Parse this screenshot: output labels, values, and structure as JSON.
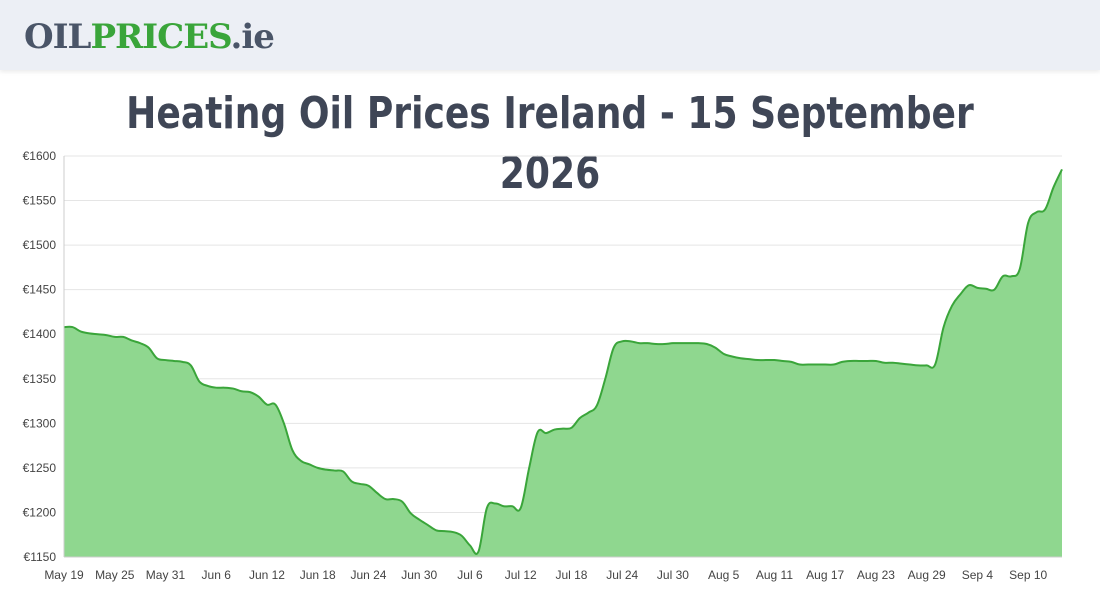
{
  "header": {
    "logo_part1": "OIL",
    "logo_part2": "PRICES",
    "logo_part3": ".ie"
  },
  "page_title": "Heating Oil Prices Ireland - 15 September 2026",
  "colors": {
    "line": "#3aa53a",
    "fill": "#8fd78f",
    "grid": "#e5e5e5",
    "title": "#3f4656"
  },
  "chart_data": {
    "type": "area",
    "title": "",
    "xlabel": "",
    "ylabel": "",
    "ylim": [
      1150,
      1600
    ],
    "xlim": [
      0,
      118
    ],
    "grid": true,
    "legend": "none",
    "y_ticks": [
      "€1600",
      "€1550",
      "€1500",
      "€1450",
      "€1400",
      "€1350",
      "€1300",
      "€1250",
      "€1200",
      "€1150"
    ],
    "y_tick_values": [
      1600,
      1550,
      1500,
      1450,
      1400,
      1350,
      1300,
      1250,
      1200,
      1150
    ],
    "x_ticks": [
      "May 19",
      "May 25",
      "May 31",
      "Jun 6",
      "Jun 12",
      "Jun 18",
      "Jun 24",
      "Jun 30",
      "Jul 6",
      "Jul 12",
      "Jul 18",
      "Jul 24",
      "Jul 30",
      "Aug 5",
      "Aug 11",
      "Aug 17",
      "Aug 23",
      "Aug 29",
      "Sep 4",
      "Sep 10"
    ],
    "x_tick_values": [
      0,
      6,
      12,
      18,
      24,
      30,
      36,
      42,
      48,
      54,
      60,
      66,
      72,
      78,
      84,
      90,
      96,
      102,
      108,
      114
    ],
    "series": [
      {
        "x": [
          0,
          1,
          2,
          3,
          4,
          5,
          6,
          7,
          8,
          9,
          10,
          11,
          12,
          13,
          14,
          15,
          16,
          17,
          18,
          19,
          20,
          21,
          22,
          23,
          24,
          25,
          26,
          27,
          28,
          29,
          30,
          31,
          32,
          33,
          34,
          35,
          36,
          37,
          38,
          39,
          40,
          41,
          42,
          43,
          44,
          45,
          46,
          47,
          48,
          49,
          50,
          51,
          52,
          53,
          54,
          55,
          56,
          57,
          58,
          59,
          60,
          61,
          62,
          63,
          64,
          65,
          66,
          67,
          68,
          69,
          70,
          71,
          72,
          73,
          74,
          75,
          76,
          77,
          78,
          79,
          80,
          81,
          82,
          83,
          84,
          85,
          86,
          87,
          88,
          89,
          90,
          91,
          92,
          93,
          94,
          95,
          96,
          97,
          98,
          99,
          100,
          101,
          102,
          103,
          104,
          105,
          106,
          107,
          108,
          109,
          110,
          111,
          112,
          113,
          114,
          115,
          116,
          117,
          118
        ],
        "values": [
          1408,
          1408,
          1403,
          1401,
          1400,
          1399,
          1397,
          1397,
          1393,
          1390,
          1385,
          1373,
          1371,
          1370,
          1369,
          1365,
          1347,
          1342,
          1340,
          1340,
          1339,
          1336,
          1335,
          1330,
          1321,
          1321,
          1300,
          1270,
          1258,
          1254,
          1250,
          1248,
          1247,
          1246,
          1235,
          1232,
          1230,
          1222,
          1215,
          1215,
          1212,
          1199,
          1192,
          1186,
          1180,
          1179,
          1178,
          1174,
          1163,
          1156,
          1205,
          1210,
          1207,
          1207,
          1205,
          1250,
          1290,
          1289,
          1293,
          1294,
          1295,
          1306,
          1312,
          1320,
          1350,
          1385,
          1392,
          1392,
          1390,
          1390,
          1389,
          1389,
          1390,
          1390,
          1390,
          1390,
          1389,
          1385,
          1378,
          1375,
          1373,
          1372,
          1371,
          1371,
          1371,
          1370,
          1369,
          1366,
          1366,
          1366,
          1366,
          1366,
          1369,
          1370,
          1370,
          1370,
          1370,
          1368,
          1368,
          1367,
          1366,
          1365,
          1365,
          1366,
          1408,
          1432,
          1445,
          1455,
          1452,
          1451,
          1450,
          1465,
          1465,
          1473,
          1525,
          1537,
          1540,
          1565,
          1585
        ]
      }
    ]
  }
}
